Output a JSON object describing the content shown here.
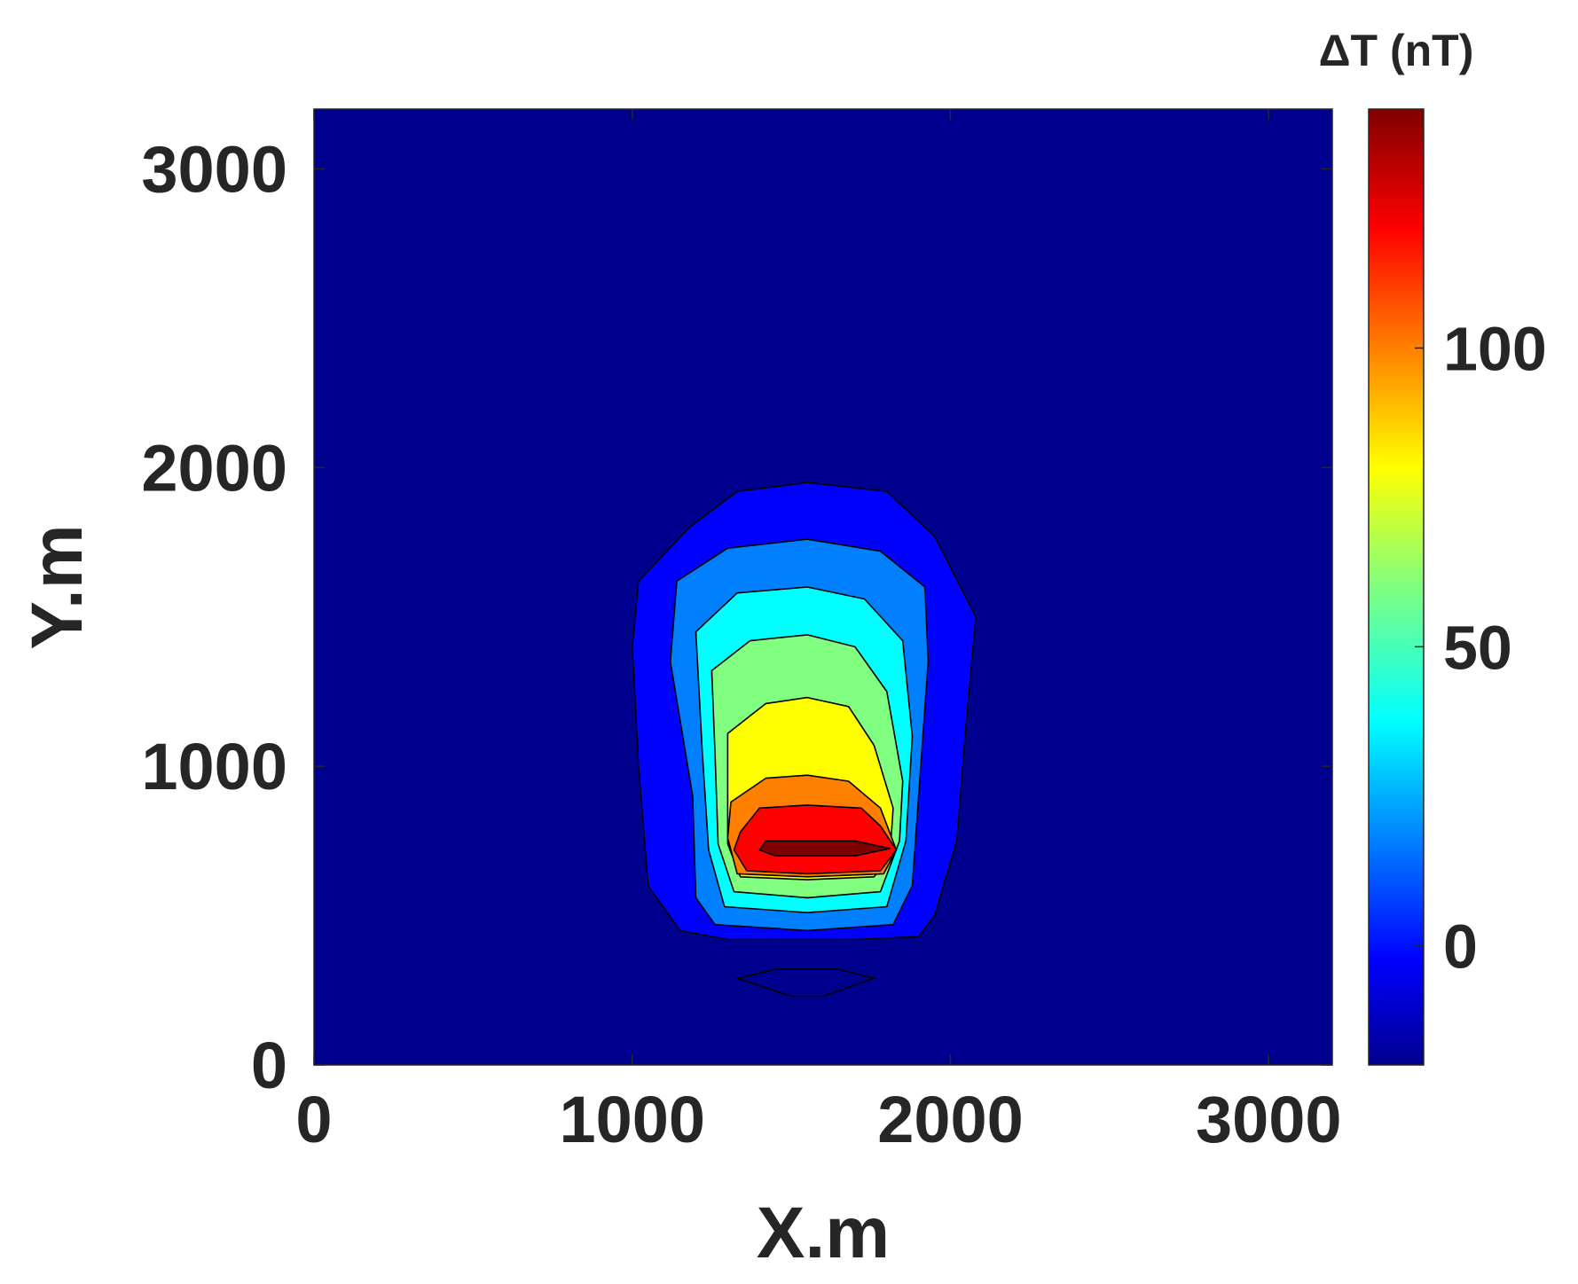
{
  "chart_data": {
    "type": "contour",
    "title": "",
    "xlabel": "X.m",
    "ylabel": "Y.m",
    "xlim": [
      0,
      3200
    ],
    "ylim": [
      0,
      3200
    ],
    "x_ticks": [
      0,
      1000,
      2000,
      3000
    ],
    "y_ticks": [
      0,
      1000,
      2000,
      3000
    ],
    "grid": false,
    "colorbar": {
      "label": "ΔT (nT)",
      "range": [
        -20,
        140
      ],
      "ticks": [
        0,
        50,
        100
      ],
      "colormap": "jet"
    },
    "contour_levels": [
      {
        "value": -20,
        "color": "#00008f"
      },
      {
        "value": -5,
        "color": "#0000ff"
      },
      {
        "value": 10,
        "color": "#0080ff"
      },
      {
        "value": 30,
        "color": "#00ffff"
      },
      {
        "value": 50,
        "color": "#80ff80"
      },
      {
        "value": 70,
        "color": "#ffff00"
      },
      {
        "value": 90,
        "color": "#ff8000"
      },
      {
        "value": 115,
        "color": "#ff0000"
      },
      {
        "value": 135,
        "color": "#800000"
      }
    ],
    "anomaly": {
      "peak_value": 140,
      "peak_location": [
        1550,
        720
      ],
      "negative_lobe_location": [
        1550,
        290
      ]
    }
  }
}
